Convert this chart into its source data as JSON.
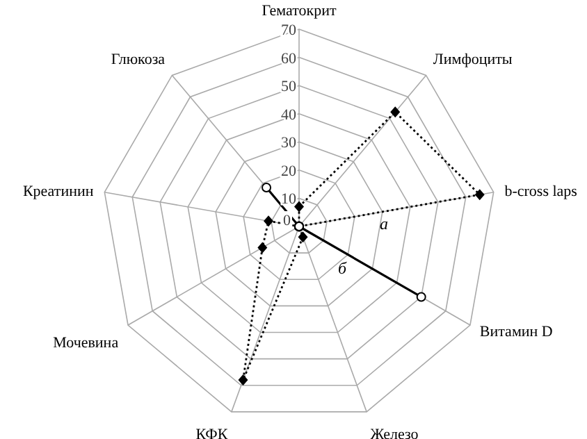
{
  "chart_data": {
    "type": "radar",
    "categories": [
      "Гематокрит",
      "Лимфоциты",
      "b-cross laps",
      "Витамин D",
      "Железо",
      "КФК",
      "Мочевина",
      "Креатинин",
      "Глюкоза"
    ],
    "ylim": [
      0,
      70
    ],
    "yticks": [
      0,
      10,
      20,
      30,
      40,
      50,
      60,
      70
    ],
    "grid": true,
    "legend": false,
    "series": [
      {
        "name": "а",
        "color": "#000000",
        "marker": "diamond",
        "line_style": "dotted",
        "values": [
          7,
          53,
          65,
          0,
          4,
          58,
          15,
          11,
          0
        ]
      },
      {
        "name": "б",
        "color": "#000000",
        "marker": "circle",
        "line_style": "solid",
        "values": [
          0,
          0,
          0,
          50,
          0,
          0,
          0,
          0,
          18
        ]
      }
    ]
  }
}
